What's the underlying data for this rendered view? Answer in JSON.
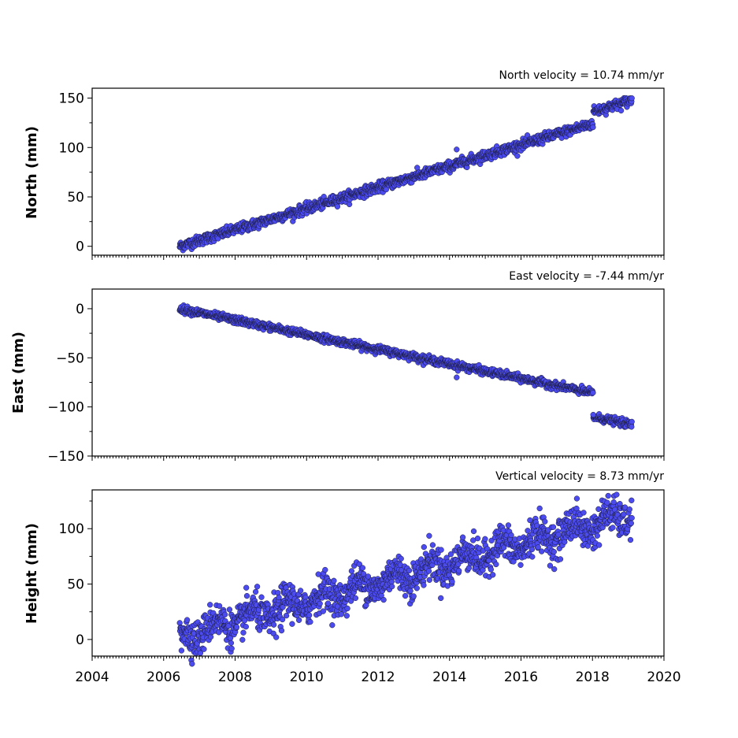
{
  "chart_data": [
    {
      "type": "scatter",
      "title": "North velocity = 10.74 mm/yr",
      "ylabel": "North (mm)",
      "xlim": [
        2004,
        2020
      ],
      "ylim": [
        -9,
        160
      ],
      "yticks": [
        0,
        50,
        100,
        150
      ],
      "xticks": [],
      "x_range": [
        2006.45,
        2019.1
      ],
      "trend_start": 0,
      "velocity": 10.74,
      "noise": 2.5,
      "marker_color": "#4b4bf0",
      "steps": [
        [
          2018.02,
          12
        ]
      ],
      "events": [
        [
          2014.2,
          98
        ]
      ]
    },
    {
      "type": "scatter",
      "title": "East velocity = -7.44 mm/yr",
      "ylabel": "East (mm)",
      "xlim": [
        2004,
        2020
      ],
      "ylim": [
        -150,
        20
      ],
      "yticks": [
        0,
        -50,
        -100,
        -150
      ],
      "xticks": [],
      "x_range": [
        2006.45,
        2019.1
      ],
      "trend_start": 0,
      "velocity": -7.44,
      "noise": 1.8,
      "marker_color": "#4b4bf0",
      "steps": [
        [
          2018.02,
          -24
        ]
      ],
      "events": [
        [
          2014.2,
          -70
        ],
        [
          2018.02,
          -108
        ]
      ]
    },
    {
      "type": "scatter",
      "title": "Vertical velocity = 8.73 mm/yr",
      "ylabel": "Height (mm)",
      "xlim": [
        2004,
        2020
      ],
      "ylim": [
        -15,
        135
      ],
      "yticks": [
        0,
        50,
        100
      ],
      "xticks": [
        2004,
        2006,
        2008,
        2010,
        2012,
        2014,
        2016,
        2018,
        2020
      ],
      "x_range": [
        2006.45,
        2019.1
      ],
      "trend_start": 3,
      "velocity": 8.73,
      "noise": 8,
      "seasonal_amplitude": 7,
      "marker_color": "#4b4bf0",
      "steps": [],
      "events": [
        [
          2006.5,
          -10
        ],
        [
          2009.15,
          2
        ],
        [
          2009.3,
          8
        ]
      ]
    }
  ]
}
